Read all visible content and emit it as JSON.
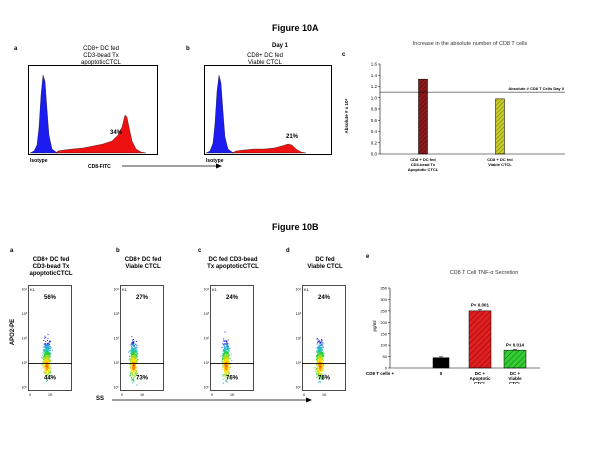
{
  "figure_a": {
    "title": "Figure 10A",
    "panel_a": {
      "letter": "a",
      "caption": [
        "CD8+ DC fed",
        "CD3-bead Tx",
        "apoptoticCTCL"
      ],
      "percent": "34%",
      "isotype": "Isotype"
    },
    "panel_b": {
      "letter": "b",
      "day": "Day 1",
      "caption": [
        "CD8+ DC fed",
        "Viable CTCL"
      ],
      "percent": "21%",
      "isotype": "Isotype"
    },
    "x_axis": "CD8-FITC",
    "panel_c": {
      "letter": "c"
    }
  },
  "figure_b": {
    "title": "Figure 10B",
    "panels": [
      {
        "letter": "a",
        "caption": [
          "CD8+ DC fed",
          "CD3-bead Tx",
          "apoptoticCTCL"
        ],
        "upper": "56%",
        "lower": "44%",
        "gate": "K1"
      },
      {
        "letter": "b",
        "caption": [
          "CD8+ DC fed",
          "Viable CTCL"
        ],
        "upper": "27%",
        "lower": "73%",
        "gate": "K1"
      },
      {
        "letter": "c",
        "caption": [
          "DC fed CD3-bead",
          "Tx apoptoticCTCL"
        ],
        "upper": "24%",
        "lower": "76%",
        "gate": "K1"
      },
      {
        "letter": "d",
        "caption": [
          "DC fed",
          "Viable CTCL"
        ],
        "upper": "24%",
        "lower": "76%",
        "gate": "K1"
      }
    ],
    "y_axis": "APO2-PE",
    "x_axis": "SS",
    "y_ticks": [
      "10⁴",
      "10³",
      "10²",
      "10¹",
      "10⁰"
    ],
    "x_ticks": [
      "0",
      "1K"
    ],
    "panel_e": {
      "letter": "e"
    }
  },
  "chart_data": [
    {
      "type": "bar",
      "title": "Increase in the absolute number of CD8 T cells",
      "categories": [
        "CD8 + DC fed CD3-bead Tx Apoptotic CTCL",
        "CD8 + DC fed Viable CTCL"
      ],
      "category_lines": [
        [
          "CD8 + DC fed",
          "CD3-bead Tx",
          "Apoptotic CTCL"
        ],
        [
          "CD8 + DC fed",
          "Viable CTCL"
        ]
      ],
      "values": [
        1.33,
        0.98
      ],
      "colors": [
        "#8b1a1a",
        "#b5b81e"
      ],
      "ylabel": "Absolute # x 10⁶",
      "ylim": [
        0,
        1.6
      ],
      "yticks": [
        "0.0",
        "0.2",
        "0.4",
        "0.6",
        "0.8",
        "1.0",
        "1.2",
        "1.4",
        "1.6"
      ],
      "reference_line": {
        "value": 1.1,
        "label": "Absolute # CD8 T Cells Day 0"
      }
    },
    {
      "type": "bar",
      "title": "CD8 T Cell TNF-α Secretion",
      "categories": [
        "0",
        "DC + Apoptotic CTCL",
        "DC + Viable CTCL"
      ],
      "category_lines": [
        [
          "0"
        ],
        [
          "DC +",
          "Apoptotic",
          "CTCL"
        ],
        [
          "DC +",
          "Viable",
          "CTCL"
        ]
      ],
      "row_label": "CD8 T cells +",
      "values": [
        45,
        250,
        78
      ],
      "errors": [
        4,
        7,
        4
      ],
      "colors": [
        "#000000",
        "#e02020",
        "#33cc33"
      ],
      "annotations": [
        "",
        "P< 0.001",
        "P< 0.014"
      ],
      "ylabel": "pg/ml",
      "ylim": [
        0,
        350
      ],
      "yticks": [
        "0",
        "50",
        "100",
        "150",
        "200",
        "250",
        "300",
        "350"
      ]
    }
  ]
}
